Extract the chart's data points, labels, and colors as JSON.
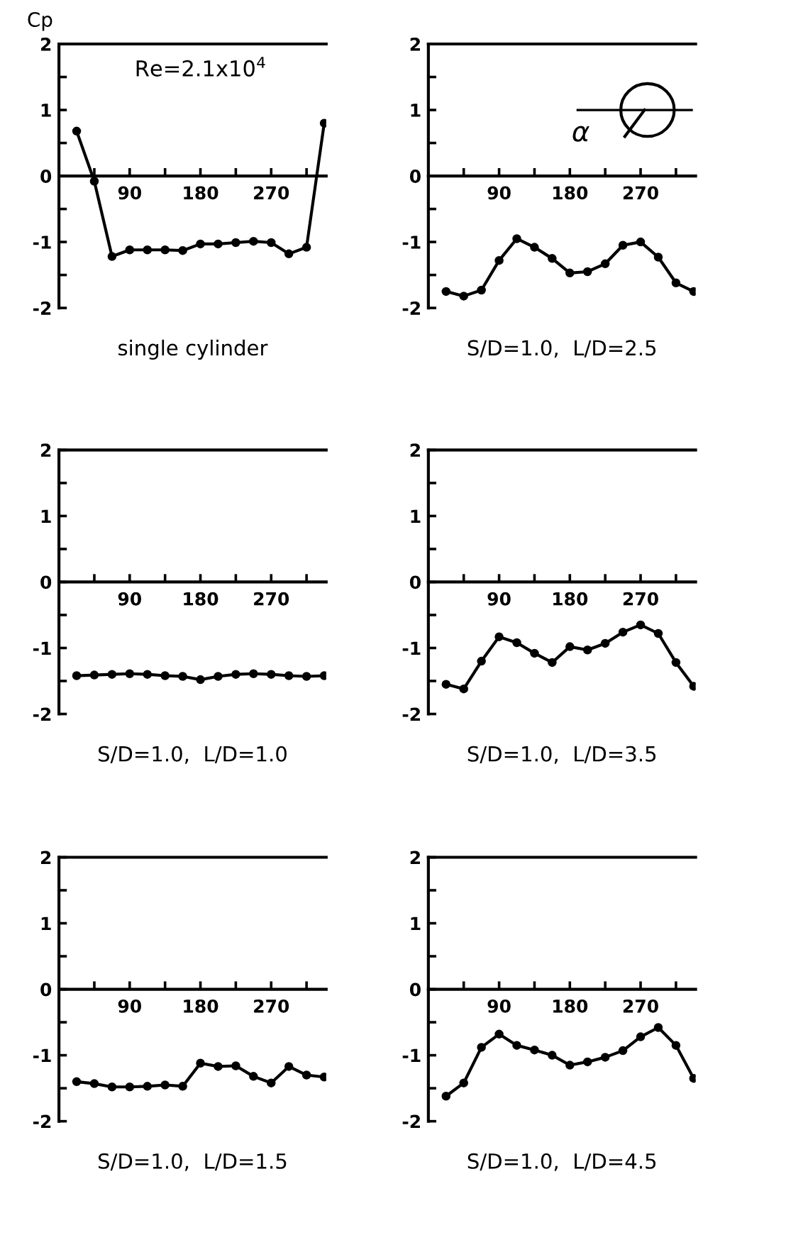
{
  "chart_data": [
    {
      "type": "line",
      "ylabel": "Cp",
      "xlabel": "single cylinder",
      "annotations": [
        "Re=2.1x10$^{4}$"
      ],
      "x": [
        22.5,
        45,
        67.5,
        90,
        112.5,
        135,
        157.5,
        180,
        202.5,
        225,
        247.5,
        270,
        292.5,
        315,
        337.5
      ],
      "series": [
        {
          "color": "#000000",
          "values": [
            0.68,
            -0.08,
            -1.22,
            -1.12,
            -1.12,
            -1.12,
            -1.13,
            -1.03,
            -1.03,
            -1.01,
            -0.99,
            -1.01,
            -1.18,
            -1.08,
            0.8
          ]
        }
      ],
      "xlim": [
        0,
        340
      ],
      "ylim": [
        -2,
        2
      ],
      "xticks": [
        {
          "value": 45,
          "label": null
        },
        90,
        {
          "value": 135,
          "label": null
        },
        180,
        {
          "value": 225,
          "label": null
        },
        270,
        {
          "value": 315,
          "label": null
        }
      ],
      "yticks": [
        -2,
        {
          "value": -1.5,
          "label": null
        },
        -1,
        {
          "value": -0.5,
          "label": null
        },
        0,
        {
          "value": 0.5,
          "label": null
        },
        1,
        {
          "value": 1.5,
          "label": null
        },
        2
      ],
      "marker": "circle",
      "line_style": "solid",
      "grid": false,
      "legend": false
    },
    {
      "type": "line",
      "xlabel": "S/D=1.0,  L/D=2.5",
      "annotations": [
        "α"
      ],
      "x": [
        22.5,
        45,
        67.5,
        90,
        112.5,
        135,
        157.5,
        180,
        202.5,
        225,
        247.5,
        270,
        292.5,
        315,
        337.5
      ],
      "series": [
        {
          "color": "#000000",
          "values": [
            -1.75,
            -1.82,
            -1.73,
            -1.28,
            -0.95,
            -1.08,
            -1.25,
            -1.47,
            -1.45,
            -1.33,
            -1.05,
            -1.0,
            -1.23,
            -1.62,
            -1.75
          ]
        }
      ],
      "xlim": [
        0,
        340
      ],
      "ylim": [
        -2,
        2
      ],
      "xticks": [
        {
          "value": 45,
          "label": null
        },
        90,
        {
          "value": 135,
          "label": null
        },
        180,
        {
          "value": 225,
          "label": null
        },
        270,
        {
          "value": 315,
          "label": null
        }
      ],
      "yticks": [
        -2,
        {
          "value": -1.5,
          "label": null
        },
        -1,
        {
          "value": -0.5,
          "label": null
        },
        0,
        {
          "value": 0.5,
          "label": null
        },
        1,
        {
          "value": 1.5,
          "label": null
        },
        2
      ],
      "marker": "circle",
      "line_style": "solid",
      "grid": false,
      "legend": false
    },
    {
      "type": "line",
      "xlabel": "S/D=1.0,  L/D=1.0",
      "x": [
        22.5,
        45,
        67.5,
        90,
        112.5,
        135,
        157.5,
        180,
        202.5,
        225,
        247.5,
        270,
        292.5,
        315,
        337.5
      ],
      "series": [
        {
          "color": "#000000",
          "values": [
            -1.42,
            -1.41,
            -1.4,
            -1.39,
            -1.4,
            -1.42,
            -1.43,
            -1.48,
            -1.43,
            -1.4,
            -1.39,
            -1.4,
            -1.42,
            -1.43,
            -1.42
          ]
        }
      ],
      "xlim": [
        0,
        340
      ],
      "ylim": [
        -2,
        2
      ],
      "xticks": [
        {
          "value": 45,
          "label": null
        },
        90,
        {
          "value": 135,
          "label": null
        },
        180,
        {
          "value": 225,
          "label": null
        },
        270,
        {
          "value": 315,
          "label": null
        }
      ],
      "yticks": [
        -2,
        {
          "value": -1.5,
          "label": null
        },
        -1,
        {
          "value": -0.5,
          "label": null
        },
        0,
        {
          "value": 0.5,
          "label": null
        },
        1,
        {
          "value": 1.5,
          "label": null
        },
        2
      ],
      "marker": "circle",
      "line_style": "solid",
      "grid": false,
      "legend": false
    },
    {
      "type": "line",
      "xlabel": "S/D=1.0,  L/D=3.5",
      "x": [
        22.5,
        45,
        67.5,
        90,
        112.5,
        135,
        157.5,
        180,
        202.5,
        225,
        247.5,
        270,
        292.5,
        315,
        337.5
      ],
      "series": [
        {
          "color": "#000000",
          "values": [
            -1.55,
            -1.62,
            -1.2,
            -0.83,
            -0.92,
            -1.08,
            -1.22,
            -0.98,
            -1.03,
            -0.93,
            -0.76,
            -0.65,
            -0.78,
            -1.22,
            -1.58
          ]
        }
      ],
      "xlim": [
        0,
        340
      ],
      "ylim": [
        -2,
        2
      ],
      "xticks": [
        {
          "value": 45,
          "label": null
        },
        90,
        {
          "value": 135,
          "label": null
        },
        180,
        {
          "value": 225,
          "label": null
        },
        270,
        {
          "value": 315,
          "label": null
        }
      ],
      "yticks": [
        -2,
        {
          "value": -1.5,
          "label": null
        },
        -1,
        {
          "value": -0.5,
          "label": null
        },
        0,
        {
          "value": 0.5,
          "label": null
        },
        1,
        {
          "value": 1.5,
          "label": null
        },
        2
      ],
      "marker": "circle",
      "line_style": "solid",
      "grid": false,
      "legend": false
    },
    {
      "type": "line",
      "xlabel": "S/D=1.0,  L/D=1.5",
      "x": [
        22.5,
        45,
        67.5,
        90,
        112.5,
        135,
        157.5,
        180,
        202.5,
        225,
        247.5,
        270,
        292.5,
        315,
        337.5
      ],
      "series": [
        {
          "color": "#000000",
          "values": [
            -1.4,
            -1.43,
            -1.48,
            -1.48,
            -1.47,
            -1.45,
            -1.47,
            -1.12,
            -1.17,
            -1.16,
            -1.32,
            -1.42,
            -1.17,
            -1.3,
            -1.33
          ]
        }
      ],
      "xlim": [
        0,
        340
      ],
      "ylim": [
        -2,
        2
      ],
      "xticks": [
        {
          "value": 45,
          "label": null
        },
        90,
        {
          "value": 135,
          "label": null
        },
        180,
        {
          "value": 225,
          "label": null
        },
        270,
        {
          "value": 315,
          "label": null
        }
      ],
      "yticks": [
        -2,
        {
          "value": -1.5,
          "label": null
        },
        -1,
        {
          "value": -0.5,
          "label": null
        },
        0,
        {
          "value": 0.5,
          "label": null
        },
        1,
        {
          "value": 1.5,
          "label": null
        },
        2
      ],
      "marker": "circle",
      "line_style": "solid",
      "grid": false,
      "legend": false
    },
    {
      "type": "line",
      "xlabel": "S/D=1.0,  L/D=4.5",
      "x": [
        22.5,
        45,
        67.5,
        90,
        112.5,
        135,
        157.5,
        180,
        202.5,
        225,
        247.5,
        270,
        292.5,
        315,
        337.5
      ],
      "series": [
        {
          "color": "#000000",
          "values": [
            -1.62,
            -1.42,
            -0.88,
            -0.68,
            -0.85,
            -0.92,
            -1.0,
            -1.15,
            -1.1,
            -1.03,
            -0.93,
            -0.72,
            -0.58,
            -0.85,
            -1.35
          ]
        }
      ],
      "xlim": [
        0,
        340
      ],
      "ylim": [
        -2,
        2
      ],
      "xticks": [
        {
          "value": 45,
          "label": null
        },
        90,
        {
          "value": 135,
          "label": null
        },
        180,
        {
          "value": 225,
          "label": null
        },
        270,
        {
          "value": 315,
          "label": null
        }
      ],
      "yticks": [
        -2,
        {
          "value": -1.5,
          "label": null
        },
        -1,
        {
          "value": -0.5,
          "label": null
        },
        0,
        {
          "value": 0.5,
          "label": null
        },
        1,
        {
          "value": 1.5,
          "label": null
        },
        2
      ],
      "marker": "circle",
      "line_style": "solid",
      "grid": false,
      "legend": false
    }
  ]
}
